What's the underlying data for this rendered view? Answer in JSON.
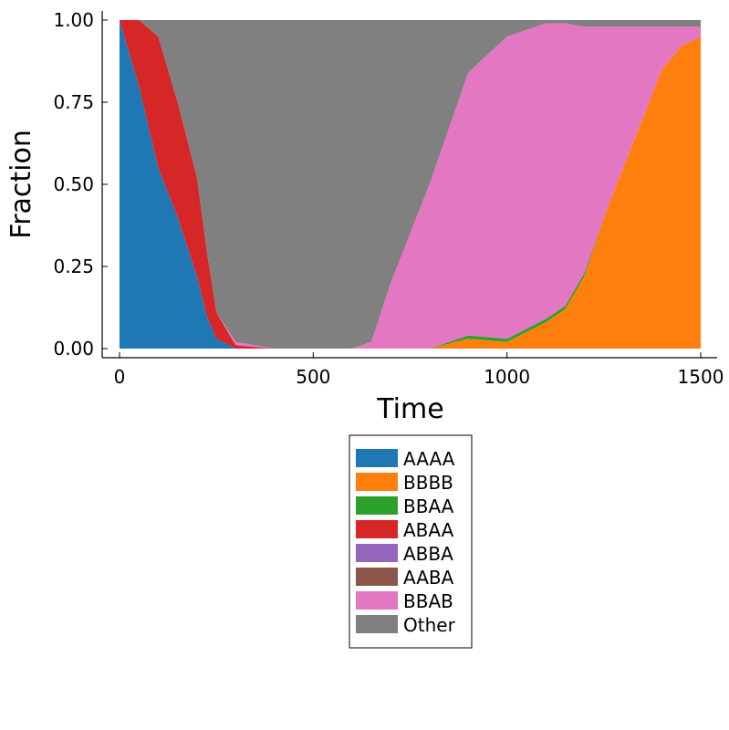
{
  "chart_data": {
    "type": "area",
    "stacked": true,
    "xlabel": "Time",
    "ylabel": "Fraction",
    "xlim": [
      0,
      1500
    ],
    "ylim": [
      0,
      1
    ],
    "x_ticks": [
      "0",
      "500",
      "1000",
      "1500"
    ],
    "y_ticks": [
      "0.00",
      "0.25",
      "0.50",
      "0.75",
      "1.00"
    ],
    "grid": false,
    "legend_position": "bottom-center",
    "x": [
      0,
      50,
      100,
      150,
      200,
      225,
      250,
      300,
      400,
      500,
      600,
      650,
      700,
      800,
      900,
      1000,
      1100,
      1150,
      1200,
      1250,
      1300,
      1350,
      1400,
      1450,
      1500
    ],
    "series": [
      {
        "name": "AAAA",
        "color": "#1f77b4",
        "values": [
          1.0,
          0.8,
          0.55,
          0.4,
          0.22,
          0.1,
          0.03,
          0.0,
          0,
          0,
          0,
          0,
          0,
          0,
          0,
          0,
          0,
          0,
          0,
          0,
          0,
          0,
          0,
          0,
          0
        ]
      },
      {
        "name": "BBBB",
        "color": "#ff7f0e",
        "values": [
          0,
          0,
          0,
          0,
          0,
          0,
          0,
          0,
          0,
          0,
          0,
          0,
          0,
          0,
          0.03,
          0.02,
          0.08,
          0.12,
          0.22,
          0.4,
          0.55,
          0.7,
          0.85,
          0.92,
          0.95
        ]
      },
      {
        "name": "BBAA",
        "color": "#2ca02c",
        "values": [
          0,
          0,
          0,
          0,
          0,
          0,
          0,
          0,
          0,
          0,
          0,
          0,
          0,
          0,
          0.01,
          0.01,
          0.01,
          0.01,
          0.01,
          0,
          0,
          0,
          0,
          0,
          0
        ]
      },
      {
        "name": "ABAA",
        "color": "#d62728",
        "values": [
          0,
          0.2,
          0.4,
          0.35,
          0.3,
          0.2,
          0.08,
          0.01,
          0,
          0,
          0,
          0,
          0,
          0,
          0,
          0,
          0,
          0,
          0,
          0,
          0,
          0,
          0,
          0,
          0
        ]
      },
      {
        "name": "ABBA",
        "color": "#9467bd",
        "values": [
          0,
          0,
          0,
          0,
          0,
          0,
          0,
          0,
          0,
          0,
          0,
          0,
          0,
          0,
          0,
          0,
          0,
          0,
          0,
          0,
          0,
          0,
          0,
          0,
          0
        ]
      },
      {
        "name": "AABA",
        "color": "#8c564b",
        "values": [
          0,
          0,
          0,
          0,
          0,
          0,
          0,
          0,
          0,
          0,
          0,
          0,
          0,
          0,
          0,
          0,
          0,
          0,
          0,
          0,
          0,
          0,
          0,
          0,
          0
        ]
      },
      {
        "name": "BBAB",
        "color": "#e377c2",
        "values": [
          0,
          0,
          0,
          0,
          0,
          0,
          0,
          0.01,
          0,
          0,
          0,
          0.02,
          0.2,
          0.5,
          0.8,
          0.92,
          0.9,
          0.86,
          0.75,
          0.58,
          0.43,
          0.28,
          0.13,
          0.06,
          0.03
        ]
      },
      {
        "name": "Other",
        "color": "#808080",
        "values": [
          0,
          0,
          0.05,
          0.25,
          0.48,
          0.7,
          0.89,
          0.98,
          1.0,
          1.0,
          1.0,
          0.98,
          0.8,
          0.5,
          0.16,
          0.05,
          0.01,
          0.01,
          0.02,
          0.02,
          0.02,
          0.02,
          0.02,
          0.02,
          0.02
        ]
      }
    ]
  }
}
